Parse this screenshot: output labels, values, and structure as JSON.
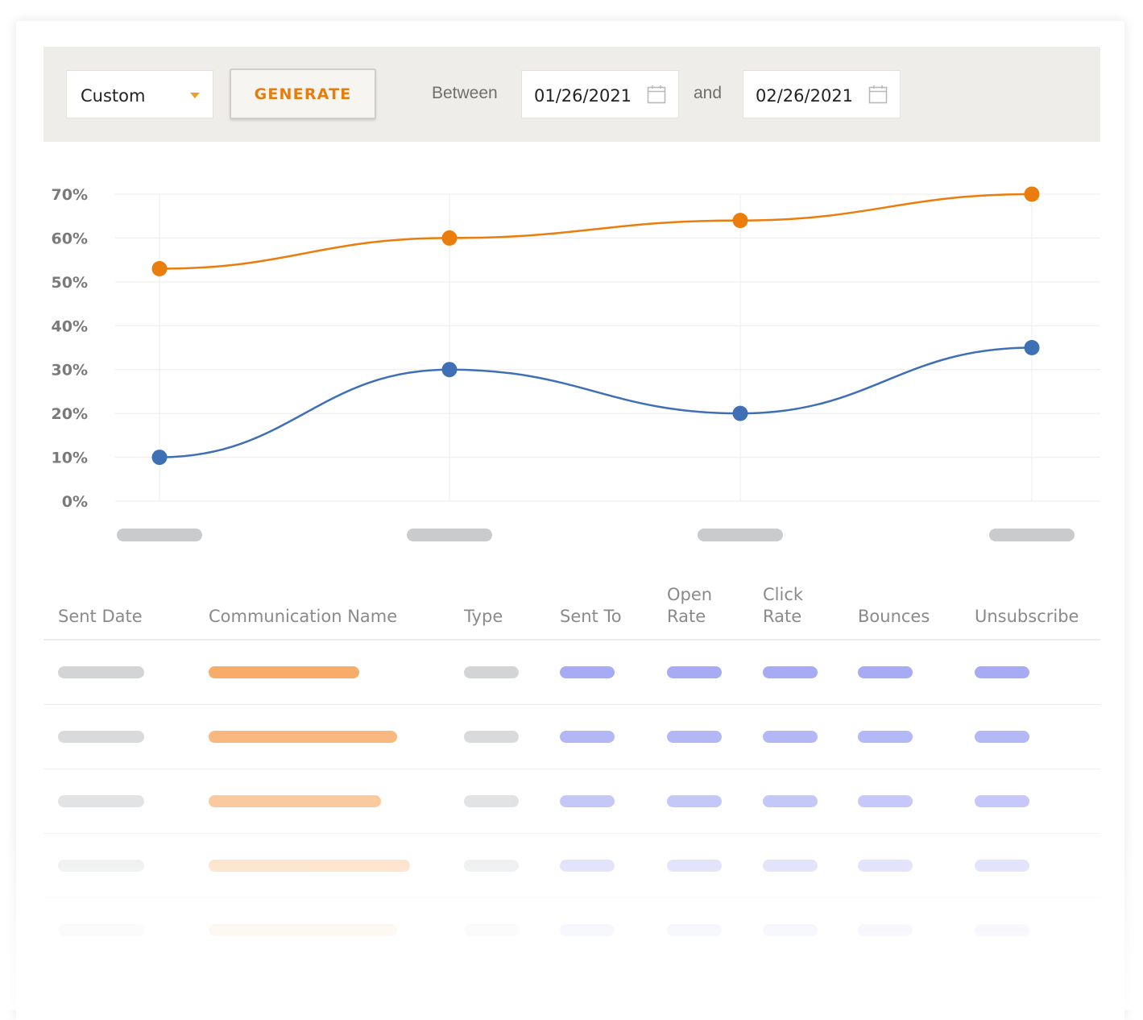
{
  "toolbar": {
    "range_select": "Custom",
    "generate_label": "GENERATE",
    "between_label": "Between",
    "start_date": "01/26/2021",
    "and_label": "and",
    "end_date": "02/26/2021"
  },
  "chart_data": {
    "type": "line",
    "categories": [
      "",
      "",
      "",
      ""
    ],
    "y_ticks": [
      "70%",
      "60%",
      "50%",
      "40%",
      "30%",
      "20%",
      "10%",
      "0%"
    ],
    "ylim": [
      0,
      70
    ],
    "grid": true,
    "series": [
      {
        "values": [
          53,
          60,
          64,
          70
        ],
        "color": "#ea7d0b"
      },
      {
        "values": [
          10,
          30,
          20,
          35
        ],
        "color": "#3f6fb5"
      }
    ]
  },
  "table": {
    "columns": [
      "Sent Date",
      "Communication Name",
      "Type",
      "Sent To",
      "Open Rate",
      "Click Rate",
      "Bounces",
      "Unsubscribe"
    ]
  },
  "colors": {
    "accent_orange": "#ea7d0b",
    "series_blue": "#3f6fb5",
    "placeholder_gray": "#d2d4d6",
    "placeholder_orange": "#f7ac6a",
    "placeholder_purple": "#a6abf4"
  }
}
